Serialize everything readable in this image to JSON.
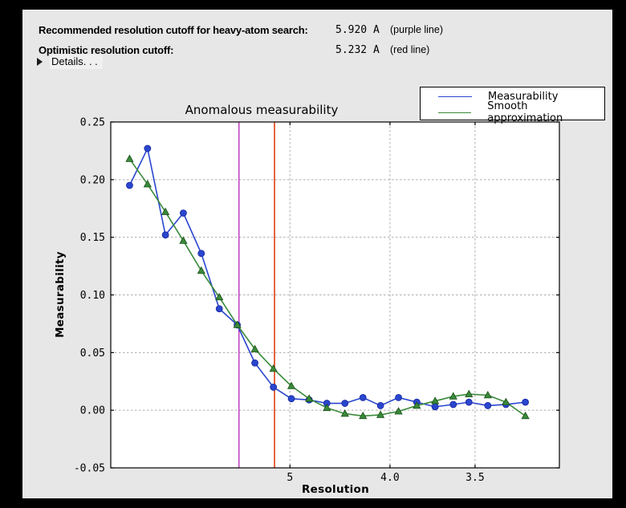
{
  "header": {
    "rows": [
      {
        "label": "Recommended resolution cutoff for heavy-atom search:",
        "value": "5.920 A",
        "note": "(purple line)"
      },
      {
        "label": "Optimistic resolution cutoff:",
        "value": "5.232 A",
        "note": "(red line)"
      }
    ],
    "details_label": "Details. . ."
  },
  "chart_data": {
    "type": "line",
    "title": "Anomalous measurability",
    "xlabel": "Resolution",
    "ylabel": "Measurability",
    "x_scale": "inverse_d_squared",
    "x_range_inv_d2": [
      -0.0003,
      0.1006
    ],
    "x_ticks": [
      {
        "d": 5,
        "label": "5"
      },
      {
        "d": 4.0,
        "label": "4.0"
      },
      {
        "d": 3.5,
        "label": "3.5"
      }
    ],
    "ylim": [
      -0.05,
      0.25
    ],
    "y_ticks": [
      {
        "v": -0.05,
        "label": "-0.05"
      },
      {
        "v": 0.0,
        "label": "0.00"
      },
      {
        "v": 0.05,
        "label": "0.05"
      },
      {
        "v": 0.1,
        "label": "0.10"
      },
      {
        "v": 0.15,
        "label": "0.15"
      },
      {
        "v": 0.2,
        "label": "0.20"
      },
      {
        "v": 0.25,
        "label": "0.25"
      }
    ],
    "grid": true,
    "legend_position": "top-right",
    "resolution_bins_d": [
      15.94,
      11.2,
      9.13,
      7.9,
      7.06,
      6.44,
      5.96,
      5.58,
      5.25,
      4.98,
      4.75,
      4.55,
      4.37,
      4.21,
      4.07,
      3.94,
      3.82,
      3.71,
      3.61,
      3.53,
      3.44,
      3.36,
      3.28
    ],
    "series": [
      {
        "name": "Measurability",
        "color": "#2a46cf",
        "marker": "circle",
        "marker_edge": "#16269b",
        "values": [
          0.195,
          0.227,
          0.152,
          0.171,
          0.136,
          0.088,
          0.074,
          0.041,
          0.02,
          0.01,
          0.009,
          0.006,
          0.006,
          0.011,
          0.004,
          0.011,
          0.007,
          0.003,
          0.005,
          0.007,
          0.004,
          0.005,
          0.007
        ]
      },
      {
        "name": "Smooth approximation",
        "color": "#3a8a3a",
        "marker": "triangle",
        "marker_edge": "#174f17",
        "values": [
          0.218,
          0.196,
          0.172,
          0.147,
          0.121,
          0.098,
          0.074,
          0.053,
          0.036,
          0.021,
          0.01,
          0.002,
          -0.003,
          -0.005,
          -0.004,
          -0.001,
          0.004,
          0.008,
          0.012,
          0.014,
          0.013,
          0.007,
          -0.005
        ]
      }
    ],
    "cutoff_lines": [
      {
        "name": "recommended-cutoff",
        "d": 5.92,
        "color": "#bf3ebf"
      },
      {
        "name": "optimistic-cutoff",
        "d": 5.232,
        "color": "#dc3400"
      }
    ],
    "colors": {
      "plot_bg": "#ffffff",
      "panel_bg": "#e7e7e7",
      "grid": "#adadad",
      "frame": "#000000"
    }
  }
}
